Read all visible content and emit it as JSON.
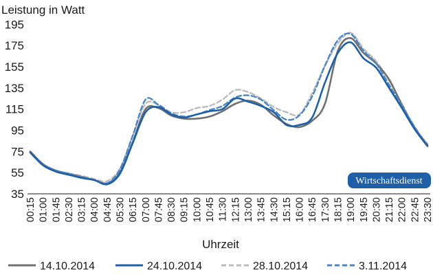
{
  "chart_data": {
    "type": "line",
    "ylabel": "Leistung in Watt",
    "xlabel": "Uhrzeit",
    "ylim": [
      35,
      205
    ],
    "yticks": [
      35,
      55,
      75,
      95,
      115,
      135,
      155,
      175,
      195
    ],
    "x_tick_labels": [
      "00:15",
      "01:00",
      "01:45",
      "02:30",
      "03:15",
      "04:00",
      "04:45",
      "05:30",
      "06:15",
      "07:00",
      "07:45",
      "08:30",
      "09:15",
      "10:00",
      "10:45",
      "11:30",
      "12:15",
      "13:00",
      "13:45",
      "14:30",
      "15:15",
      "16:00",
      "16:45",
      "17:30",
      "18:15",
      "19:00",
      "19:45",
      "20:30",
      "21:15",
      "22:00",
      "22:45",
      "23:30"
    ],
    "x": [
      "00:15",
      "01:00",
      "01:45",
      "02:30",
      "03:15",
      "04:00",
      "04:45",
      "05:30",
      "06:15",
      "07:00",
      "07:45",
      "08:30",
      "09:15",
      "10:00",
      "10:45",
      "11:30",
      "12:15",
      "13:00",
      "13:45",
      "14:30",
      "15:15",
      "16:00",
      "16:45",
      "17:30",
      "18:15",
      "19:00",
      "19:45",
      "20:30",
      "21:15",
      "22:00",
      "22:45",
      "23:30"
    ],
    "series": [
      {
        "name": "14.10.2014",
        "color": "#707070",
        "dash": false,
        "values": [
          75,
          63,
          57,
          54,
          51,
          48,
          45,
          55,
          84,
          115,
          116,
          109,
          106,
          106,
          108,
          113,
          120,
          123,
          119,
          109,
          101,
          98,
          104,
          120,
          170,
          182,
          168,
          158,
          143,
          119,
          97,
          81
        ]
      },
      {
        "name": "24.10.2014",
        "color": "#1f5fa8",
        "dash": false,
        "values": [
          74,
          62,
          56,
          53,
          50,
          48,
          44,
          54,
          83,
          112,
          117,
          110,
          107,
          110,
          113,
          115,
          125,
          122,
          118,
          112,
          100,
          100,
          107,
          140,
          168,
          178,
          163,
          154,
          135,
          116,
          96,
          80
        ]
      },
      {
        "name": "28.10.2014",
        "color": "#bcbcbc",
        "dash": true,
        "values": [
          74,
          62,
          56,
          54,
          52,
          49,
          47,
          59,
          90,
          120,
          119,
          112,
          112,
          116,
          118,
          124,
          133,
          131,
          125,
          117,
          112,
          110,
          130,
          156,
          177,
          187,
          172,
          160,
          142,
          120,
          98,
          82
        ]
      },
      {
        "name": "3.11.2014",
        "color": "#4a86c8",
        "dash": true,
        "values": [
          74,
          63,
          57,
          54,
          51,
          48,
          45,
          58,
          90,
          124,
          119,
          111,
          108,
          110,
          114,
          118,
          126,
          128,
          124,
          114,
          105,
          109,
          127,
          156,
          180,
          186,
          170,
          158,
          138,
          118,
          98,
          80
        ]
      }
    ],
    "grid": false,
    "legend_position": "bottom"
  },
  "badge": {
    "text": "Wirtschaftsdienst",
    "color": "#1f5fa8"
  }
}
